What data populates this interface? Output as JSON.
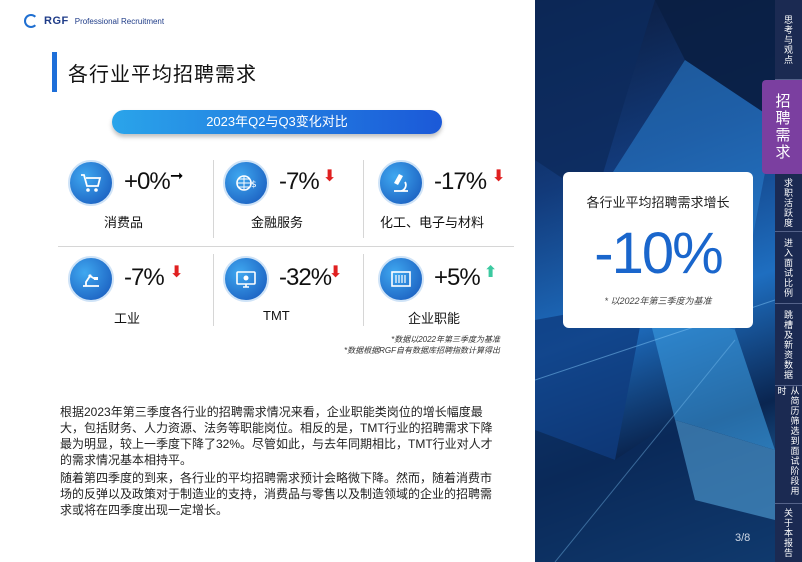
{
  "logo": {
    "brand": "RGF",
    "sub": "Professional Recruitment"
  },
  "title": "各行业平均招聘需求",
  "comparison_label": "2023年Q2与Q3变化对比",
  "industries": [
    {
      "label": "消费品",
      "change": "+0%",
      "direction": "right",
      "arrow": "➞",
      "icon": "shopping-cart-icon"
    },
    {
      "label": "金融服务",
      "change": "-7%",
      "direction": "down",
      "arrow": "⬇",
      "icon": "finance-globe-icon"
    },
    {
      "label": "化工、电子与材料",
      "change": "-17%",
      "direction": "down",
      "arrow": "⬇",
      "icon": "microscope-icon"
    },
    {
      "label": "工业",
      "change": "-7%",
      "direction": "down",
      "arrow": "⬇",
      "icon": "robot-arm-icon"
    },
    {
      "label": "TMT",
      "change": "-32%",
      "direction": "down",
      "arrow": "⬇",
      "icon": "monitor-icon"
    },
    {
      "label": "企业职能",
      "change": "+5%",
      "direction": "up",
      "arrow": "⬆",
      "icon": "office-building-icon"
    }
  ],
  "notes": [
    "*数据以2022年第三季度为基准",
    "*数据根据RGF自有数据库招聘指数计算得出"
  ],
  "paragraphs": [
    "根据2023年第三季度各行业的招聘需求情况来看，企业职能类岗位的增长幅度最大，包括财务、人力资源、法务等职能岗位。相反的是，TMT行业的招聘需求下降最为明显，较上一季度下降了32%。尽管如此，与去年同期相比，TMT行业对人才的需求情况基本相持平。",
    "随着第四季度的到来，各行业的平均招聘需求预计会略微下降。然而，随着消费市场的反弹以及政策对于制造业的支持，消费品与零售以及制造领域的企业的招聘需求或将在四季度出现一定增长。"
  ],
  "stat": {
    "title": "各行业平均招聘需求增长",
    "value": "-10%",
    "note": "* 以2022年第三季度为基准"
  },
  "page": "3/8",
  "nav": [
    {
      "label": "思考与观点",
      "active": false
    },
    {
      "label": "招聘需求",
      "active": true
    },
    {
      "label": "求职活跃度",
      "active": false
    },
    {
      "label": "进入面试比例",
      "active": false
    },
    {
      "label": "跳槽及新资数据",
      "active": false
    },
    {
      "label": "从简历筛选到面试阶段用时",
      "active": false
    },
    {
      "label": "关于本报告",
      "active": false
    }
  ],
  "colors": {
    "accent": "#1e6fd9",
    "down": "#e02020",
    "up": "#3cc9a0",
    "nav_active": "#7b3fa0",
    "nav_bg": "#1b2a52"
  }
}
